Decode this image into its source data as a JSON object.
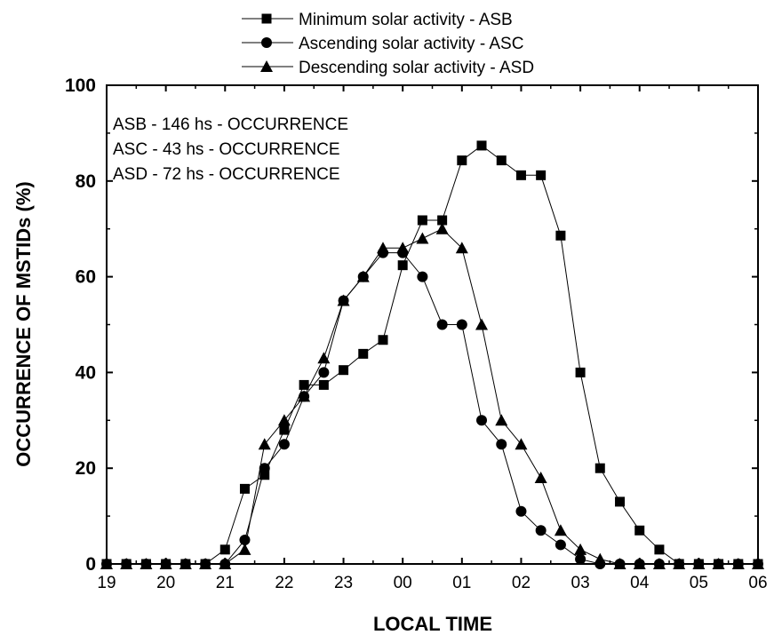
{
  "chart_data": {
    "type": "line",
    "title": "",
    "xlabel": "LOCAL TIME",
    "ylabel": "OCCURRENCE OF MSTIDs (%)",
    "xlim": [
      0,
      11
    ],
    "ylim": [
      0,
      100
    ],
    "x_tick_labels": [
      "19",
      "20",
      "21",
      "22",
      "23",
      "00",
      "01",
      "02",
      "03",
      "04",
      "05",
      "06"
    ],
    "y_ticks": [
      0,
      20,
      40,
      60,
      80,
      100
    ],
    "legend_placement": "top-center",
    "annotations": [
      "ASB - 146 hs - OCCURRENCE",
      "ASC - 43 hs  - OCCURRENCE",
      "ASD - 72 hs  - OCCURRENCE"
    ],
    "series": [
      {
        "name": "Minimum solar activity - ASB",
        "marker": "square",
        "x": [
          0,
          0.333,
          0.667,
          1,
          1.333,
          1.667,
          2,
          2.333,
          2.667,
          3,
          3.333,
          3.667,
          4,
          4.333,
          4.667,
          5,
          5.333,
          5.667,
          6,
          6.333,
          6.667,
          7,
          7.333,
          7.667,
          8,
          8.333,
          8.667,
          9,
          9.333,
          9.667,
          10,
          10.333,
          10.667,
          11
        ],
        "values": [
          0,
          0,
          0,
          0,
          0,
          0,
          3,
          15.7,
          18.6,
          28,
          37.4,
          37.4,
          40.5,
          43.9,
          46.8,
          62.4,
          71.8,
          71.8,
          84.3,
          87.4,
          84.3,
          81.2,
          81.2,
          68.6,
          40,
          20,
          13,
          7,
          3,
          0,
          0,
          0,
          0,
          0
        ]
      },
      {
        "name": "Ascending solar activity - ASC",
        "marker": "circle",
        "x": [
          0,
          0.333,
          0.667,
          1,
          1.333,
          1.667,
          2,
          2.333,
          2.667,
          3,
          3.333,
          3.667,
          4,
          4.333,
          4.667,
          5,
          5.333,
          5.667,
          6,
          6.333,
          6.667,
          7,
          7.333,
          7.667,
          8,
          8.333,
          8.667,
          9,
          9.333,
          9.667,
          10,
          10.333,
          10.667,
          11
        ],
        "values": [
          0,
          0,
          0,
          0,
          0,
          0,
          0,
          5,
          20,
          25,
          35,
          40,
          55,
          60,
          65,
          65,
          60,
          50,
          50,
          30,
          25,
          11,
          7,
          4,
          1,
          0,
          0,
          0,
          0,
          0,
          0,
          0,
          0,
          0
        ]
      },
      {
        "name": "Descending solar activity - ASD",
        "marker": "triangle",
        "x": [
          0,
          0.333,
          0.667,
          1,
          1.333,
          1.667,
          2,
          2.333,
          2.667,
          3,
          3.333,
          3.667,
          4,
          4.333,
          4.667,
          5,
          5.333,
          5.667,
          6,
          6.333,
          6.667,
          7,
          7.333,
          7.667,
          8,
          8.333,
          8.667,
          9,
          9.333,
          9.667,
          10,
          10.333,
          10.667,
          11
        ],
        "values": [
          0,
          0,
          0,
          0,
          0,
          0,
          0,
          3,
          25,
          30,
          35,
          43,
          55,
          60,
          66,
          66,
          68,
          70,
          66,
          50,
          30,
          25,
          18,
          7,
          3,
          1,
          0,
          0,
          0,
          0,
          0,
          0,
          0,
          0
        ]
      }
    ]
  }
}
